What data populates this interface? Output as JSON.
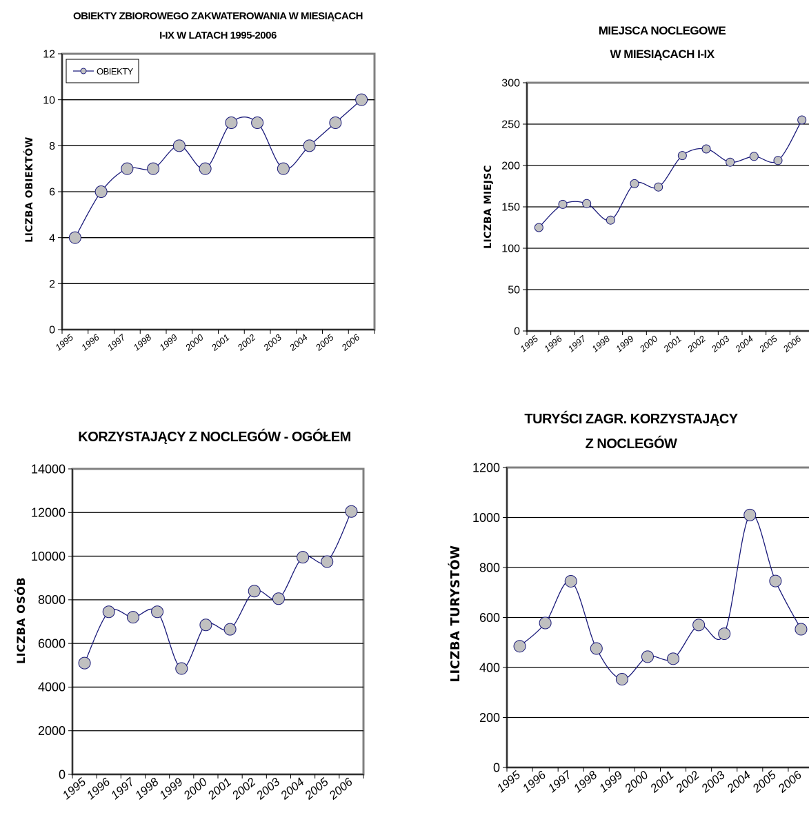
{
  "colors": {
    "line": "#1a1a7a",
    "marker_fill": "#c0c0c0",
    "marker_stroke": "#1a1a7a",
    "plot_border": "#808080",
    "grid": "#000000"
  },
  "chart_data": [
    {
      "type": "line",
      "title": "OBIEKTY ZBIOROWEGO ZAKWATEROWANIA W MIESIĄCACH",
      "subtitle": "I-IX W LATACH 1995-2006",
      "xlabel": "",
      "ylabel": "LICZBA OBIEKTÓW",
      "x": [
        "1995",
        "1996",
        "1997",
        "1998",
        "1999",
        "2000",
        "2001",
        "2002",
        "2003",
        "2004",
        "2005",
        "2006"
      ],
      "series": [
        {
          "name": "OBIEKTY",
          "values": [
            4,
            6,
            7,
            7,
            8,
            7,
            9,
            9,
            7,
            8,
            9,
            10
          ]
        }
      ],
      "ylim": [
        0,
        12
      ],
      "yticks": [
        0,
        2,
        4,
        6,
        8,
        10,
        12
      ],
      "grid": true,
      "legend": "top-left"
    },
    {
      "type": "line",
      "title": "MIEJSCA NOCLEGOWE",
      "subtitle": "W MIESIĄCACH I-IX",
      "xlabel": "",
      "ylabel": "LICZBA MIEJSC",
      "x": [
        "1995",
        "1996",
        "1997",
        "1998",
        "1999",
        "2000",
        "2001",
        "2002",
        "2003",
        "2004",
        "2005",
        "2006"
      ],
      "series": [
        {
          "values": [
            125,
            153,
            154,
            134,
            178,
            174,
            212,
            220,
            204,
            211,
            206,
            255
          ]
        }
      ],
      "ylim": [
        0,
        300
      ],
      "yticks": [
        0,
        50,
        100,
        150,
        200,
        250,
        300
      ],
      "grid": true
    },
    {
      "type": "line",
      "title": "KORZYSTAJĄCY Z NOCLEGÓW - OGÓŁEM",
      "subtitle": "",
      "xlabel": "",
      "ylabel": "LICZBA OSÓB",
      "x": [
        "1995",
        "1996",
        "1997",
        "1998",
        "1999",
        "2000",
        "2001",
        "2002",
        "2003",
        "2004",
        "2005",
        "2006"
      ],
      "series": [
        {
          "values": [
            5100,
            7450,
            7200,
            7450,
            4850,
            6850,
            6650,
            8400,
            8050,
            9950,
            9750,
            12050
          ]
        }
      ],
      "ylim": [
        0,
        14000
      ],
      "yticks": [
        0,
        2000,
        4000,
        6000,
        8000,
        10000,
        12000,
        14000
      ],
      "grid": true
    },
    {
      "type": "line",
      "title": "TURYŚCI ZAGR. KORZYSTAJĄCY",
      "subtitle": "Z NOCLEGÓW",
      "xlabel": "",
      "ylabel": "LICZBA TURYSTÓW",
      "x": [
        "1995",
        "1996",
        "1997",
        "1998",
        "1999",
        "2000",
        "2001",
        "2002",
        "2003",
        "2004",
        "2005",
        "2006"
      ],
      "series": [
        {
          "values": [
            485,
            578,
            745,
            476,
            353,
            443,
            435,
            570,
            535,
            1010,
            746,
            553
          ]
        }
      ],
      "ylim": [
        0,
        1200
      ],
      "yticks": [
        0,
        200,
        400,
        600,
        800,
        1000,
        1200
      ],
      "grid": true
    }
  ]
}
